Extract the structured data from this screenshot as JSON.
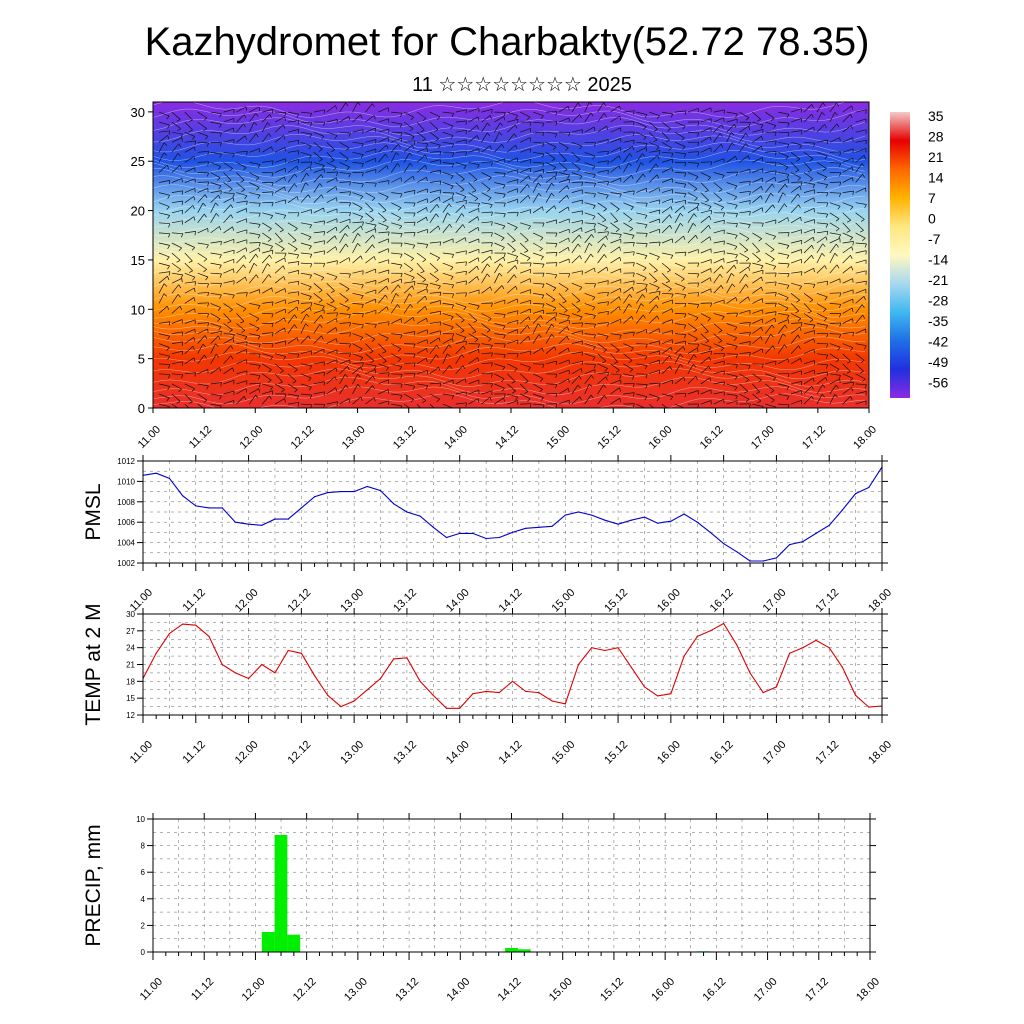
{
  "header": {
    "title": "Kazhydromet for Charbakty(52.72 78.35)",
    "subtitle": "11 ☆☆☆☆☆☆☆☆ 2025"
  },
  "time_labels": [
    "11.00",
    "11.12",
    "12.00",
    "12.12",
    "13.00",
    "13.12",
    "14.00",
    "14.12",
    "15.00",
    "15.12",
    "16.00",
    "16.12",
    "17.00",
    "17.12",
    "18.00"
  ],
  "chart_data": [
    {
      "type": "heatmap",
      "ylim": [
        0,
        31
      ],
      "yticks": [
        0,
        5,
        10,
        15,
        20,
        25,
        30
      ],
      "colorbar": {
        "labels": [
          "35",
          "28",
          "21",
          "14",
          "7",
          "0",
          "-7",
          "-14",
          "-21",
          "-28",
          "-35",
          "-42",
          "-49",
          "-56"
        ],
        "stops": [
          "#f4c8c8",
          "#e60000",
          "#ff6600",
          "#ffb300",
          "#ffe680",
          "#fff8c0",
          "#a8d8f0",
          "#3fb8f0",
          "#1f6fe6",
          "#2030e0",
          "#8a2be2"
        ]
      },
      "profile": [
        {
          "level": 0,
          "value": 28
        },
        {
          "level": 5,
          "value": 21
        },
        {
          "level": 10,
          "value": 12
        },
        {
          "level": 15,
          "value": -7
        },
        {
          "level": 20,
          "value": -21
        },
        {
          "level": 25,
          "value": -42
        },
        {
          "level": 31,
          "value": -56
        }
      ]
    },
    {
      "type": "line",
      "ylabel": "PMSL",
      "ylim": [
        1002,
        1012
      ],
      "yticks": [
        1002,
        1004,
        1006,
        1008,
        1010,
        1012
      ],
      "color": "#0000cc",
      "x": [
        0,
        3,
        6,
        9,
        12,
        15,
        18,
        21,
        24,
        27,
        30,
        33,
        36,
        39,
        42,
        45,
        48,
        51,
        54,
        57,
        60,
        63,
        66,
        69,
        72,
        75,
        78,
        81,
        84,
        87,
        90,
        93,
        96,
        99,
        102,
        105,
        108,
        111,
        114,
        117,
        120,
        123,
        126,
        129,
        132,
        135,
        138,
        141,
        144,
        147,
        150,
        153,
        156,
        159,
        162,
        165,
        168
      ],
      "values": [
        1010.6,
        1010.8,
        1010.3,
        1008.6,
        1007.6,
        1007.4,
        1007.4,
        1006.0,
        1005.8,
        1005.7,
        1006.3,
        1006.3,
        1007.4,
        1008.5,
        1008.9,
        1009.0,
        1009.0,
        1009.5,
        1009.1,
        1007.8,
        1007.0,
        1006.6,
        1005.5,
        1004.5,
        1004.9,
        1004.9,
        1004.4,
        1004.5,
        1005.0,
        1005.4,
        1005.5,
        1005.6,
        1006.7,
        1007.0,
        1006.7,
        1006.2,
        1005.8,
        1006.2,
        1006.5,
        1005.9,
        1006.1,
        1006.8,
        1006.0,
        1005.0,
        1003.9,
        1003.1,
        1002.2,
        1002.2,
        1002.5,
        1003.8,
        1004.1,
        1004.9,
        1005.7,
        1007.2,
        1008.8,
        1009.4,
        1011.4
      ]
    },
    {
      "type": "line",
      "ylabel": "TEMP at 2 M",
      "ylim": [
        12,
        30
      ],
      "yticks": [
        12,
        15,
        18,
        21,
        24,
        27,
        30
      ],
      "color": "#dd0000",
      "x": [
        0,
        3,
        6,
        9,
        12,
        15,
        18,
        21,
        24,
        27,
        30,
        33,
        36,
        39,
        42,
        45,
        48,
        51,
        54,
        57,
        60,
        63,
        66,
        69,
        72,
        75,
        78,
        81,
        84,
        87,
        90,
        93,
        96,
        99,
        102,
        105,
        108,
        111,
        114,
        117,
        120,
        123,
        126,
        129,
        132,
        135,
        138,
        141,
        144,
        147,
        150,
        153,
        156,
        159,
        162,
        165,
        168
      ],
      "values": [
        18.5,
        23.0,
        26.5,
        28.2,
        28.0,
        26.0,
        21.0,
        19.5,
        18.5,
        21.0,
        19.5,
        23.5,
        23.0,
        19.0,
        15.5,
        13.5,
        14.5,
        16.5,
        18.5,
        22.0,
        22.2,
        18.0,
        15.5,
        13.2,
        13.2,
        15.8,
        16.2,
        16.0,
        18.0,
        16.2,
        16.0,
        14.5,
        14.0,
        21.0,
        24.0,
        23.5,
        24.0,
        20.5,
        17.0,
        15.4,
        15.8,
        22.5,
        26.0,
        27.0,
        28.3,
        24.5,
        19.5,
        16.0,
        17.0,
        23.0,
        24.0,
        25.3,
        24.0,
        20.5,
        15.5,
        13.4,
        13.6
      ]
    },
    {
      "type": "bar",
      "ylabel": "PRECIP, mm",
      "ylim": [
        0,
        10
      ],
      "yticks": [
        0,
        2,
        4,
        6,
        8,
        10
      ],
      "color": "#00ee00",
      "x": [
        27,
        30,
        33,
        84,
        87,
        129
      ],
      "values": [
        1.5,
        8.8,
        1.3,
        0.3,
        0.2,
        0.05
      ]
    }
  ]
}
